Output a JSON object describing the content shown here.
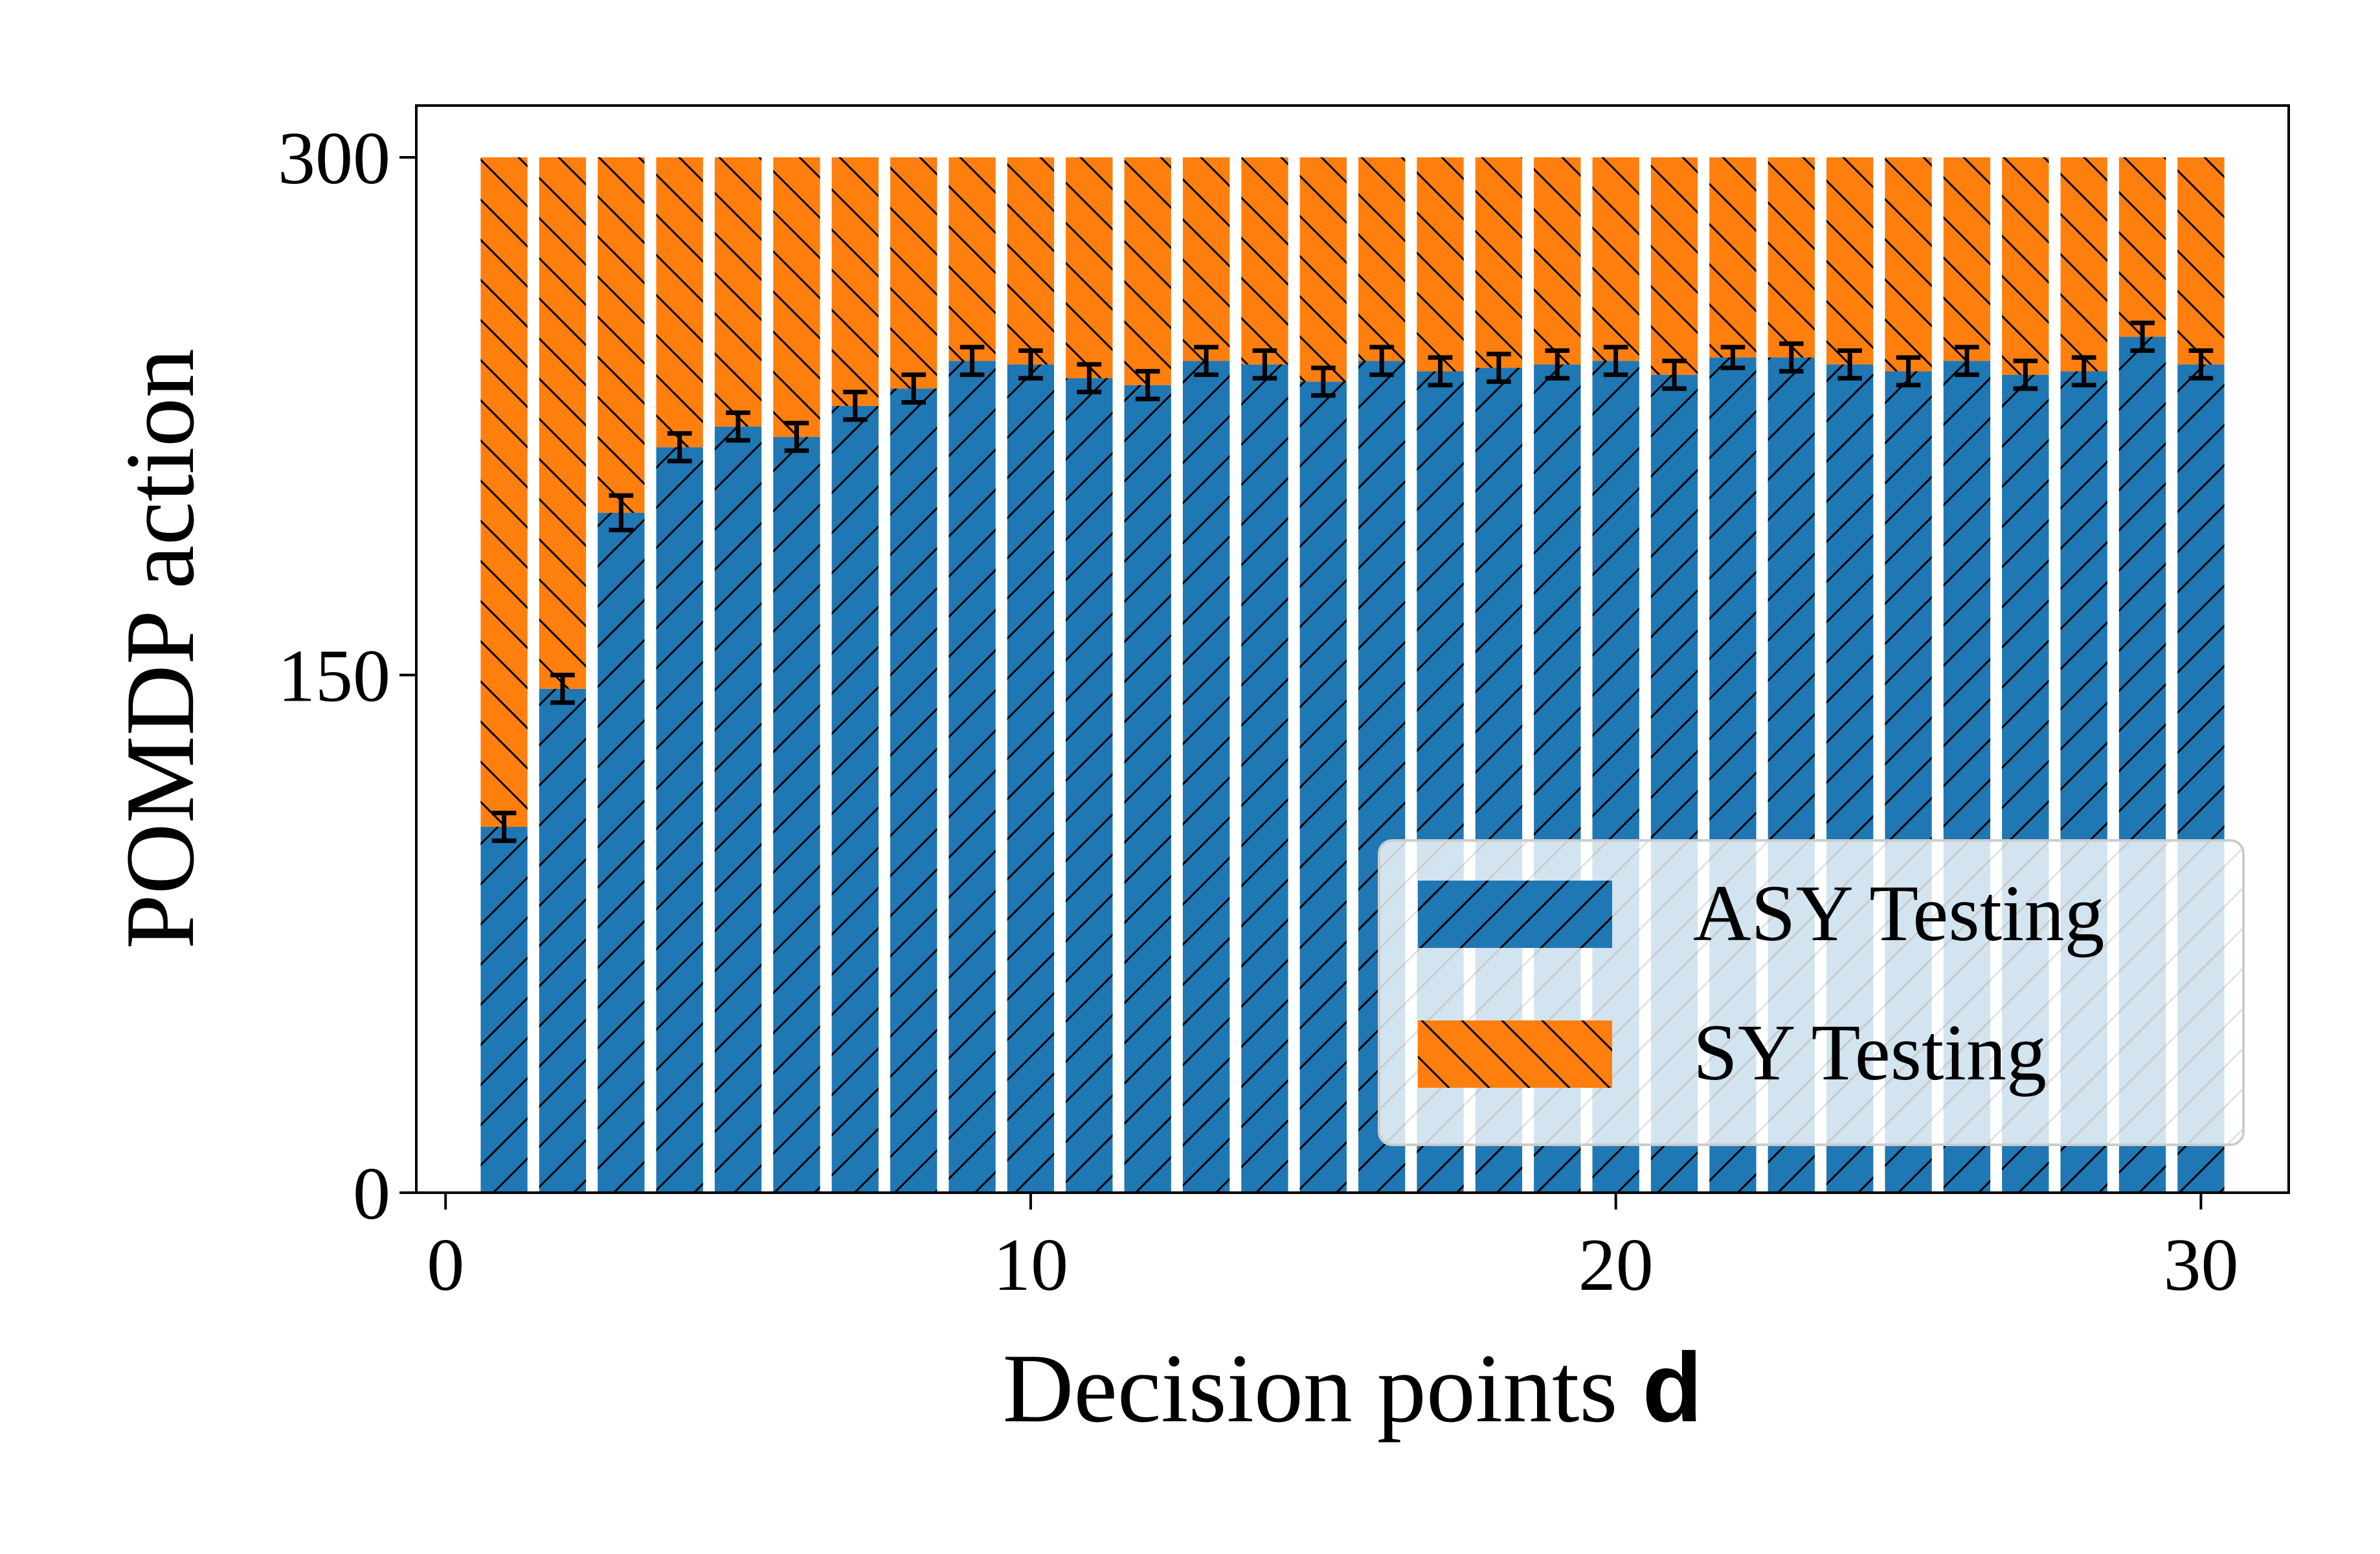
{
  "chart_data": {
    "type": "bar",
    "stacked": true,
    "x": [
      1,
      2,
      3,
      4,
      5,
      6,
      7,
      8,
      9,
      10,
      11,
      12,
      13,
      14,
      15,
      16,
      17,
      18,
      19,
      20,
      21,
      22,
      23,
      24,
      25,
      26,
      27,
      28,
      29,
      30
    ],
    "series": [
      {
        "name": "ASY Testing",
        "color": "#1f77b4",
        "hatch": "forward-slash",
        "values": [
          106,
          146,
          197,
          216,
          222,
          219,
          228,
          233,
          241,
          240,
          236,
          234,
          241,
          240,
          235,
          241,
          238,
          239,
          240,
          241,
          237,
          242,
          242,
          240,
          238,
          241,
          237,
          238,
          248,
          240
        ],
        "error": [
          4,
          4,
          5,
          4,
          4,
          4,
          4,
          4,
          4,
          4,
          4,
          4,
          4,
          4,
          4,
          4,
          4,
          4,
          4,
          4,
          4,
          3,
          4,
          4,
          4,
          4,
          4,
          4,
          4,
          4
        ]
      },
      {
        "name": "SY Testing",
        "color": "#ff7f0e",
        "hatch": "back-slash",
        "values": [
          194,
          154,
          103,
          84,
          78,
          81,
          72,
          67,
          59,
          60,
          64,
          66,
          59,
          60,
          65,
          59,
          62,
          61,
          60,
          59,
          63,
          58,
          58,
          60,
          62,
          59,
          63,
          62,
          52,
          60
        ]
      }
    ],
    "xlabel": "Decision points",
    "xlabel_var": "d",
    "ylabel": "POMDP action",
    "xlim": [
      -0.5,
      31.5
    ],
    "ylim": [
      0,
      315
    ],
    "xticks": [
      "0",
      "10",
      "20",
      "30"
    ],
    "yticks": [
      "0",
      "150",
      "300"
    ],
    "grid": false,
    "legend_placement": "lower-right"
  }
}
